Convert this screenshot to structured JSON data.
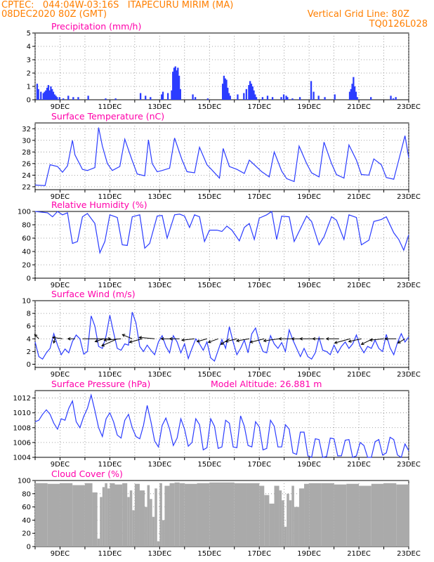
{
  "header": {
    "line1": "CPTEC:   044:04W-03:16S   ITAPECURU MIRIM (MA)",
    "line2": "08DEC2020 80Z (GMT)",
    "grid_line": "Vertical Grid Line: 80Z",
    "model": "TQ0126L028"
  },
  "chart_data": [
    {
      "type": "bar",
      "title": "Precipitation (mm/h)",
      "color": "#2b3cff",
      "ylim": [
        0,
        5
      ],
      "yticks": [
        0,
        1,
        2,
        3,
        4,
        5
      ],
      "x_range_days": [
        8.0,
        23.0
      ],
      "x_tick_labels": [
        "9DEC",
        "11DEC",
        "13DEC",
        "15DEC",
        "17DEC",
        "19DEC",
        "21DEC",
        "23DEC"
      ],
      "x": [
        8.05,
        8.1,
        8.2,
        8.3,
        8.35,
        8.4,
        8.45,
        8.5,
        8.55,
        8.6,
        8.65,
        8.7,
        8.75,
        8.8,
        8.85,
        8.95,
        9.1,
        9.3,
        9.5,
        9.7,
        10.1,
        10.8,
        11.2,
        12.2,
        12.4,
        12.6,
        13.05,
        13.1,
        13.3,
        13.45,
        13.5,
        13.55,
        13.6,
        13.65,
        13.7,
        13.75,
        13.8,
        14.3,
        14.4,
        14.9,
        15.5,
        15.55,
        15.6,
        15.65,
        15.7,
        15.75,
        15.8,
        16.1,
        16.35,
        16.45,
        16.55,
        16.6,
        16.65,
        16.7,
        16.75,
        16.8,
        16.85,
        17.1,
        17.3,
        17.5,
        17.85,
        17.95,
        18.05,
        18.1,
        18.3,
        18.6,
        19.05,
        19.15,
        19.35,
        19.6,
        20.0,
        20.6,
        20.65,
        20.7,
        20.75,
        20.8,
        20.85,
        20.9,
        21.45,
        22.25,
        22.35,
        22.45
      ],
      "values": [
        1.2,
        0.8,
        0.6,
        0.5,
        0.6,
        0.7,
        0.9,
        1.1,
        0.7,
        1.0,
        0.8,
        0.6,
        0.4,
        0.3,
        0.2,
        0.2,
        0.1,
        0.3,
        0.2,
        0.2,
        0.3,
        0.1,
        0.1,
        0.5,
        0.3,
        0.2,
        0.4,
        0.6,
        0.5,
        0.7,
        2.1,
        2.4,
        2.5,
        2.2,
        2.4,
        1.8,
        0.8,
        0.4,
        0.2,
        0.1,
        1.2,
        1.8,
        1.6,
        1.5,
        0.9,
        0.5,
        0.3,
        0.4,
        0.5,
        0.8,
        1.1,
        1.4,
        1.2,
        1.0,
        0.7,
        0.4,
        0.2,
        0.2,
        0.3,
        0.2,
        0.2,
        0.4,
        0.3,
        0.2,
        0.1,
        0.2,
        1.4,
        0.6,
        0.3,
        0.2,
        0.4,
        0.6,
        0.8,
        1.2,
        1.7,
        1.0,
        0.6,
        0.2,
        0.2,
        0.3,
        0.1,
        0.2
      ]
    },
    {
      "type": "line",
      "title": "Surface Temperature (nC)",
      "color": "#2b3cff",
      "ylim": [
        21.5,
        33
      ],
      "yticks": [
        22,
        24,
        26,
        28,
        30,
        32
      ],
      "x_range_days": [
        8.0,
        23.0
      ],
      "x_tick_labels": [
        "9DEC",
        "11DEC",
        "13DEC",
        "15DEC",
        "17DEC",
        "19DEC",
        "21DEC",
        "23DEC"
      ],
      "x": [
        8.0,
        8.4,
        8.6,
        8.9,
        9.1,
        9.3,
        9.5,
        9.6,
        9.9,
        10.1,
        10.4,
        10.55,
        10.7,
        10.9,
        11.1,
        11.4,
        11.6,
        11.9,
        12.1,
        12.4,
        12.55,
        12.7,
        12.9,
        13.1,
        13.4,
        13.6,
        13.9,
        14.1,
        14.4,
        14.6,
        14.9,
        15.1,
        15.4,
        15.55,
        15.8,
        16.1,
        16.4,
        16.6,
        16.8,
        17.1,
        17.4,
        17.6,
        17.9,
        18.1,
        18.4,
        18.6,
        18.9,
        19.1,
        19.4,
        19.6,
        19.9,
        20.1,
        20.4,
        20.6,
        20.9,
        21.1,
        21.4,
        21.6,
        21.9,
        22.1,
        22.4,
        22.6,
        22.85,
        23.0
      ],
      "values": [
        22.3,
        22.2,
        25.8,
        25.5,
        24.5,
        25.6,
        30.0,
        27.5,
        25.0,
        24.8,
        25.3,
        32.2,
        29.0,
        26.0,
        24.8,
        25.5,
        30.2,
        26.5,
        24.2,
        23.9,
        30.1,
        26.0,
        24.6,
        24.8,
        25.2,
        30.4,
        26.6,
        24.6,
        24.4,
        28.8,
        25.8,
        24.9,
        23.5,
        28.6,
        25.5,
        25.0,
        24.3,
        26.6,
        25.8,
        24.6,
        23.7,
        28.0,
        24.7,
        23.4,
        22.9,
        29.0,
        26.0,
        24.4,
        23.7,
        29.7,
        26.0,
        24.1,
        23.5,
        29.2,
        26.6,
        24.1,
        24.0,
        26.8,
        25.8,
        23.6,
        23.3,
        26.6,
        30.8,
        27.0
      ]
    },
    {
      "type": "line",
      "title": "Relative Humidity (%)",
      "color": "#2b3cff",
      "ylim": [
        0,
        100
      ],
      "yticks": [
        0,
        20,
        40,
        60,
        80,
        100
      ],
      "x_range_days": [
        8.0,
        23.0
      ],
      "x_tick_labels": [
        "9DEC",
        "11DEC",
        "13DEC",
        "15DEC",
        "17DEC",
        "19DEC",
        "21DEC",
        "23DEC"
      ],
      "x": [
        8.0,
        8.5,
        8.7,
        8.9,
        9.1,
        9.3,
        9.5,
        9.7,
        9.9,
        10.1,
        10.4,
        10.6,
        10.8,
        11.0,
        11.3,
        11.5,
        11.7,
        11.9,
        12.2,
        12.4,
        12.6,
        12.9,
        13.1,
        13.3,
        13.6,
        13.8,
        14.0,
        14.2,
        14.4,
        14.6,
        14.8,
        15.0,
        15.3,
        15.5,
        15.7,
        15.9,
        16.2,
        16.4,
        16.6,
        16.8,
        17.0,
        17.3,
        17.5,
        17.7,
        17.9,
        18.2,
        18.4,
        18.6,
        18.9,
        19.1,
        19.4,
        19.6,
        19.9,
        20.1,
        20.4,
        20.6,
        20.9,
        21.1,
        21.4,
        21.6,
        21.9,
        22.1,
        22.4,
        22.6,
        22.8,
        23.0
      ],
      "values": [
        100,
        98,
        92,
        100,
        95,
        98,
        52,
        55,
        92,
        97,
        82,
        38,
        55,
        95,
        91,
        50,
        49,
        92,
        95,
        45,
        52,
        93,
        94,
        60,
        95,
        96,
        93,
        76,
        95,
        92,
        55,
        72,
        72,
        70,
        78,
        72,
        56,
        76,
        82,
        58,
        90,
        95,
        100,
        58,
        93,
        92,
        55,
        70,
        93,
        85,
        50,
        62,
        92,
        87,
        58,
        95,
        91,
        50,
        57,
        85,
        88,
        92,
        68,
        58,
        42,
        65
      ]
    },
    {
      "type": "line",
      "title": "Surface Wind (m/s)",
      "color": "#2b3cff",
      "arrow_color": "#000000",
      "ylim": [
        -0.5,
        10
      ],
      "yticks": [
        0,
        2,
        4,
        6,
        8,
        10
      ],
      "x_range_days": [
        8.0,
        23.0
      ],
      "x_tick_labels": [
        "9DEC",
        "11DEC",
        "13DEC",
        "15DEC",
        "17DEC",
        "19DEC",
        "21DEC",
        "23DEC"
      ],
      "x": [
        8.0,
        8.15,
        8.3,
        8.45,
        8.6,
        8.75,
        8.9,
        9.05,
        9.2,
        9.35,
        9.5,
        9.65,
        9.8,
        9.95,
        10.1,
        10.25,
        10.4,
        10.55,
        10.7,
        10.85,
        11.0,
        11.15,
        11.3,
        11.45,
        11.6,
        11.75,
        11.9,
        12.05,
        12.2,
        12.35,
        12.5,
        12.65,
        12.8,
        12.95,
        13.1,
        13.25,
        13.4,
        13.55,
        13.7,
        13.85,
        14.0,
        14.15,
        14.3,
        14.45,
        14.6,
        14.75,
        14.9,
        15.05,
        15.2,
        15.35,
        15.5,
        15.65,
        15.8,
        15.95,
        16.1,
        16.25,
        16.4,
        16.55,
        16.7,
        16.85,
        17.0,
        17.15,
        17.3,
        17.45,
        17.6,
        17.75,
        17.9,
        18.05,
        18.2,
        18.35,
        18.5,
        18.65,
        18.8,
        18.95,
        19.1,
        19.25,
        19.4,
        19.55,
        19.7,
        19.85,
        20.0,
        20.15,
        20.3,
        20.45,
        20.6,
        20.75,
        20.9,
        21.05,
        21.2,
        21.35,
        21.5,
        21.65,
        21.8,
        21.95,
        22.1,
        22.25,
        22.4,
        22.55,
        22.7,
        22.85,
        23.0
      ],
      "values": [
        3.5,
        1.2,
        0.8,
        1.8,
        2.5,
        4.8,
        3.0,
        1.5,
        2.4,
        1.8,
        3.6,
        4.6,
        4.0,
        1.6,
        2.0,
        7.6,
        6.0,
        2.8,
        2.5,
        4.5,
        7.7,
        5.0,
        2.5,
        2.2,
        3.2,
        3.0,
        8.2,
        6.5,
        2.8,
        2.0,
        3.0,
        2.2,
        1.5,
        3.5,
        4.5,
        2.8,
        1.8,
        4.5,
        3.5,
        1.8,
        3.2,
        0.9,
        2.5,
        4.0,
        3.2,
        2.2,
        3.5,
        1.0,
        0.5,
        2.2,
        3.9,
        2.5,
        5.9,
        3.5,
        1.5,
        2.5,
        3.8,
        1.8,
        4.8,
        5.7,
        3.5,
        2.0,
        1.8,
        4.5,
        3.2,
        2.5,
        3.4,
        2.0,
        5.4,
        3.8,
        2.5,
        1.2,
        2.5,
        1.2,
        0.8,
        1.8,
        4.2,
        2.2,
        2.0,
        1.5,
        3.0,
        1.8,
        2.8,
        3.5,
        2.5,
        3.2,
        4.6,
        2.8,
        1.8,
        2.8,
        2.5,
        3.8,
        2.5,
        2.0,
        4.7,
        2.6,
        1.5,
        3.4,
        4.8,
        3.5,
        4.3
      ],
      "arrows": [
        {
          "day": 8.15,
          "dx": -6,
          "dy": -6
        },
        {
          "day": 8.8,
          "dx": -2,
          "dy": 6
        },
        {
          "day": 9.1,
          "dx": -14,
          "dy": -2
        },
        {
          "day": 9.6,
          "dx": -10,
          "dy": 0
        },
        {
          "day": 9.9,
          "dx": 40,
          "dy": 0
        },
        {
          "day": 10.75,
          "dx": -12,
          "dy": 4
        },
        {
          "day": 11.3,
          "dx": -22,
          "dy": 10
        },
        {
          "day": 11.45,
          "dx": -24,
          "dy": 2
        },
        {
          "day": 11.9,
          "dx": -14,
          "dy": -6
        },
        {
          "day": 12.3,
          "dx": -18,
          "dy": 5
        },
        {
          "day": 12.8,
          "dx": -22,
          "dy": -2
        },
        {
          "day": 13.4,
          "dx": -12,
          "dy": 0
        },
        {
          "day": 13.8,
          "dx": -14,
          "dy": 0
        },
        {
          "day": 14.4,
          "dx": -18,
          "dy": 2
        },
        {
          "day": 14.9,
          "dx": -14,
          "dy": 4
        },
        {
          "day": 15.35,
          "dx": -14,
          "dy": 5
        },
        {
          "day": 15.8,
          "dx": -12,
          "dy": 8
        },
        {
          "day": 16.1,
          "dx": -16,
          "dy": 4
        },
        {
          "day": 16.6,
          "dx": -18,
          "dy": 3
        },
        {
          "day": 17.2,
          "dx": -20,
          "dy": 5
        },
        {
          "day": 17.8,
          "dx": -22,
          "dy": 3
        },
        {
          "day": 18.3,
          "dx": -18,
          "dy": 0
        },
        {
          "day": 18.7,
          "dx": -14,
          "dy": 0
        },
        {
          "day": 19.2,
          "dx": -20,
          "dy": 0
        },
        {
          "day": 19.6,
          "dx": -16,
          "dy": 0
        },
        {
          "day": 20.2,
          "dx": -18,
          "dy": 0
        },
        {
          "day": 20.65,
          "dx": -22,
          "dy": 6
        },
        {
          "day": 21.1,
          "dx": -18,
          "dy": 4
        },
        {
          "day": 21.55,
          "dx": -16,
          "dy": 8
        },
        {
          "day": 22.0,
          "dx": -20,
          "dy": 2
        },
        {
          "day": 22.5,
          "dx": -16,
          "dy": 0
        },
        {
          "day": 22.85,
          "dx": -10,
          "dy": 6
        }
      ]
    },
    {
      "type": "line",
      "title": "Surface Pressure (hPa)",
      "subtitle": "Model Altitude: 26.881 m",
      "color": "#2b3cff",
      "ylim": [
        1004,
        1013
      ],
      "yticks": [
        1004,
        1006,
        1008,
        1010,
        1012
      ],
      "x_range_days": [
        8.0,
        23.0
      ],
      "x_tick_labels": [
        "9DEC",
        "11DEC",
        "13DEC",
        "15DEC",
        "17DEC",
        "19DEC",
        "21DEC",
        "23DEC"
      ],
      "x": [
        8.0,
        8.15,
        8.3,
        8.45,
        8.6,
        8.75,
        8.9,
        9.05,
        9.2,
        9.35,
        9.5,
        9.65,
        9.8,
        9.95,
        10.1,
        10.25,
        10.4,
        10.55,
        10.7,
        10.85,
        11.0,
        11.15,
        11.3,
        11.45,
        11.6,
        11.75,
        11.9,
        12.05,
        12.2,
        12.35,
        12.5,
        12.65,
        12.8,
        12.95,
        13.1,
        13.25,
        13.4,
        13.55,
        13.7,
        13.85,
        14.0,
        14.15,
        14.3,
        14.45,
        14.6,
        14.75,
        14.9,
        15.05,
        15.2,
        15.35,
        15.5,
        15.65,
        15.8,
        15.95,
        16.1,
        16.25,
        16.4,
        16.55,
        16.7,
        16.85,
        17.0,
        17.15,
        17.3,
        17.45,
        17.6,
        17.75,
        17.9,
        18.05,
        18.2,
        18.35,
        18.5,
        18.65,
        18.8,
        18.95,
        19.1,
        19.25,
        19.4,
        19.55,
        19.7,
        19.85,
        20.0,
        20.15,
        20.3,
        20.45,
        20.6,
        20.75,
        20.9,
        21.05,
        21.2,
        21.35,
        21.5,
        21.65,
        21.8,
        21.95,
        22.1,
        22.25,
        22.4,
        22.55,
        22.7,
        22.85,
        23.0
      ],
      "values": [
        1008.8,
        1009.0,
        1009.8,
        1010.4,
        1009.8,
        1008.6,
        1007.8,
        1009.2,
        1009.0,
        1010.6,
        1011.6,
        1008.8,
        1008.0,
        1009.5,
        1010.6,
        1012.4,
        1010.3,
        1008.0,
        1006.8,
        1009.2,
        1010.0,
        1008.8,
        1007.0,
        1006.6,
        1009.0,
        1009.8,
        1008.0,
        1006.8,
        1006.5,
        1008.3,
        1011.0,
        1008.8,
        1006.2,
        1005.4,
        1008.3,
        1009.3,
        1007.8,
        1005.6,
        1006.6,
        1009.2,
        1007.8,
        1005.5,
        1006.0,
        1009.2,
        1008.4,
        1005.0,
        1005.3,
        1009.2,
        1008.2,
        1005.2,
        1005.4,
        1009.0,
        1008.6,
        1005.4,
        1005.3,
        1009.6,
        1008.2,
        1005.6,
        1005.4,
        1008.8,
        1008.1,
        1005.0,
        1005.2,
        1009.0,
        1008.2,
        1005.4,
        1005.4,
        1008.4,
        1007.8,
        1004.6,
        1004.4,
        1007.4,
        1007.4,
        1004.2,
        1003.9,
        1006.5,
        1006.4,
        1004.0,
        1004.1,
        1006.6,
        1006.5,
        1004.2,
        1004.2,
        1006.3,
        1006.4,
        1004.0,
        1004.2,
        1006.0,
        1005.6,
        1003.8,
        1004.0,
        1006.1,
        1006.4,
        1004.3,
        1004.6,
        1006.7,
        1006.4,
        1004.3,
        1004.0,
        1005.8,
        1004.9
      ]
    },
    {
      "type": "bar",
      "title": "Cloud Cover (%)",
      "color": "#aaaaaa",
      "ylim": [
        0,
        100
      ],
      "yticks": [
        0,
        20,
        40,
        60,
        80,
        100
      ],
      "x_range_days": [
        8.0,
        23.0
      ],
      "x_tick_labels": [
        "9DEC",
        "11DEC",
        "13DEC",
        "15DEC",
        "17DEC",
        "19DEC",
        "21DEC",
        "23DEC"
      ],
      "x": [
        8.0,
        8.5,
        9.0,
        9.5,
        10.0,
        10.3,
        10.5,
        10.6,
        10.7,
        10.8,
        10.9,
        11.0,
        11.2,
        11.5,
        11.7,
        11.8,
        11.9,
        12.0,
        12.2,
        12.4,
        12.5,
        12.6,
        12.7,
        12.8,
        12.9,
        13.0,
        13.1,
        13.2,
        13.4,
        13.6,
        13.8,
        14.0,
        14.5,
        15.0,
        15.5,
        16.0,
        16.5,
        17.0,
        17.2,
        17.4,
        17.6,
        17.8,
        17.9,
        18.0,
        18.1,
        18.2,
        18.3,
        18.4,
        18.6,
        18.8,
        19.0,
        19.5,
        20.0,
        20.5,
        21.0,
        21.5,
        22.0,
        22.5,
        23.0
      ],
      "values": [
        96,
        95,
        96,
        93,
        96,
        82,
        12,
        75,
        90,
        96,
        88,
        96,
        94,
        96,
        75,
        85,
        55,
        95,
        85,
        60,
        93,
        72,
        45,
        88,
        8,
        96,
        40,
        92,
        96,
        97,
        96,
        95,
        96,
        97,
        97,
        96,
        96,
        92,
        78,
        65,
        92,
        85,
        70,
        30,
        80,
        70,
        92,
        60,
        88,
        95,
        96,
        96,
        94,
        95,
        92,
        95,
        96,
        94,
        95
      ]
    }
  ]
}
